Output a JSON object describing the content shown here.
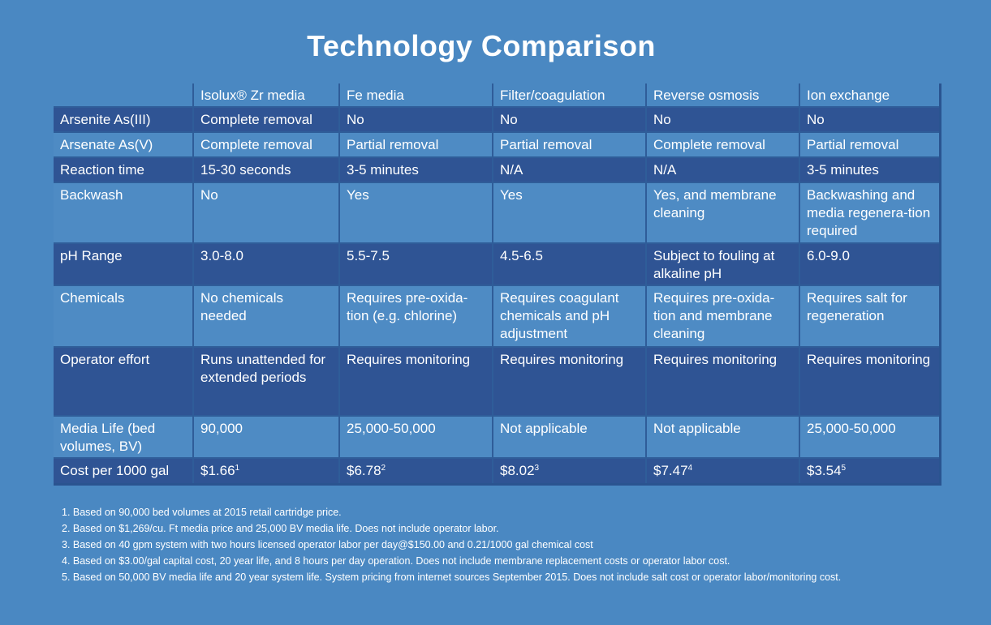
{
  "title": "Technology Comparison",
  "columns": [
    "Isolux® Zr media",
    "Fe media",
    "Filter/coagulation",
    "Reverse osmosis",
    "Ion exchange"
  ],
  "rows": [
    {
      "label": "Arsenite As(III)",
      "cells": [
        "Complete removal",
        "No",
        "No",
        "No",
        "No"
      ]
    },
    {
      "label": "Arsenate As(V)",
      "cells": [
        "Complete removal",
        "Partial removal",
        "Partial removal",
        "Complete removal",
        "Partial removal"
      ]
    },
    {
      "label": "Reaction time",
      "cells": [
        "15-30 seconds",
        "3-5 minutes",
        "N/A",
        "N/A",
        "3-5 minutes"
      ]
    },
    {
      "label": "Backwash",
      "cells": [
        "No",
        "Yes",
        "Yes",
        "Yes, and membrane cleaning",
        "Backwashing and media regenera-tion required"
      ]
    },
    {
      "label": "pH Range",
      "cells": [
        "3.0-8.0",
        "5.5-7.5",
        "4.5-6.5",
        "Subject to fouling at alkaline pH",
        "6.0-9.0"
      ]
    },
    {
      "label": "Chemicals",
      "cells": [
        "No chemicals needed",
        "Requires pre-oxida-tion (e.g. chlorine)",
        "Requires coagulant chemicals and pH adjustment",
        "Requires pre-oxida-tion and membrane cleaning",
        "Requires salt for regeneration"
      ]
    },
    {
      "label": "Operator effort",
      "cells": [
        "Runs unattended for extended periods",
        "Requires monitoring",
        "Requires monitoring",
        "Requires monitoring",
        "Requires monitoring"
      ]
    },
    {
      "label": "Media Life (bed volumes, BV)",
      "cells": [
        "90,000",
        "25,000-50,000",
        "Not applicable",
        "Not applicable",
        "25,000-50,000"
      ]
    },
    {
      "label": "Cost per 1000 gal",
      "cells": [
        "$1.66",
        "$6.78",
        "$8.02",
        "$7.47",
        "$3.54"
      ],
      "sups": [
        "1",
        "2",
        "3",
        "4",
        "5"
      ]
    }
  ],
  "footnotes": [
    "1. Based on 90,000 bed volumes at 2015 retail cartridge price.",
    "2. Based on $1,269/cu. Ft media price and 25,000 BV media life.  Does not include operator labor.",
    "3. Based on 40 gpm system with two hours licensed operator labor per day@$150.00 and 0.21/1000 gal chemical cost",
    "4. Based on $3.00/gal capital cost, 20 year life, and 8 hours per day operation.  Does not include membrane replacement costs or operator labor cost.",
    "5. Based on 50,000 BV media life and 20 year system life.  System pricing from internet sources September 2015.  Does not include salt cost or operator labor/monitoring cost."
  ],
  "colors": {
    "background": "#4a88c2",
    "dark_row": "#2f5494",
    "light_row": "#4e8bc4",
    "text": "#ffffff"
  }
}
